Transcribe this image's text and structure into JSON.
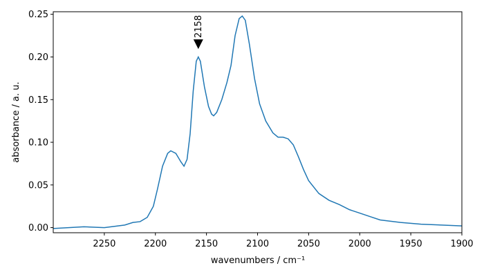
{
  "chart_data": {
    "type": "line",
    "xlabel": "wavenumbers / cm⁻¹",
    "ylabel": "absorbance / a. u.",
    "x": [
      2300,
      2270,
      2250,
      2230,
      2222,
      2215,
      2208,
      2202,
      2198,
      2193,
      2188,
      2185,
      2180,
      2175,
      2172,
      2169,
      2166,
      2163,
      2160,
      2158,
      2156,
      2152,
      2148,
      2145,
      2143,
      2140,
      2135,
      2130,
      2126,
      2122,
      2118,
      2115,
      2112,
      2108,
      2103,
      2098,
      2092,
      2085,
      2080,
      2075,
      2070,
      2065,
      2060,
      2055,
      2050,
      2040,
      2030,
      2020,
      2010,
      2000,
      1990,
      1980,
      1960,
      1940,
      1920,
      1900
    ],
    "values": [
      -0.001,
      0.001,
      0.0,
      0.003,
      0.006,
      0.007,
      0.012,
      0.025,
      0.045,
      0.072,
      0.087,
      0.09,
      0.087,
      0.077,
      0.072,
      0.08,
      0.11,
      0.16,
      0.195,
      0.2,
      0.195,
      0.165,
      0.142,
      0.133,
      0.131,
      0.135,
      0.15,
      0.17,
      0.19,
      0.225,
      0.245,
      0.248,
      0.243,
      0.215,
      0.175,
      0.145,
      0.125,
      0.111,
      0.106,
      0.106,
      0.104,
      0.097,
      0.083,
      0.068,
      0.055,
      0.04,
      0.032,
      0.027,
      0.021,
      0.017,
      0.013,
      0.009,
      0.006,
      0.004,
      0.003,
      0.002
    ],
    "color": "#1f77b4",
    "xlim": [
      2300,
      1900
    ],
    "ylim": [
      -0.006,
      0.253
    ],
    "xticks": [
      2250,
      2200,
      2150,
      2100,
      2050,
      2000,
      1950,
      1900
    ],
    "yticks": [
      {
        "value": 0,
        "label": "0.00"
      },
      0.05,
      {
        "value": 0.1,
        "label": "0.10"
      },
      0.15,
      {
        "value": 0.2,
        "label": "0.20"
      },
      0.25
    ],
    "annotations": [
      {
        "x": 2158,
        "y": 0.215
      }
    ]
  }
}
